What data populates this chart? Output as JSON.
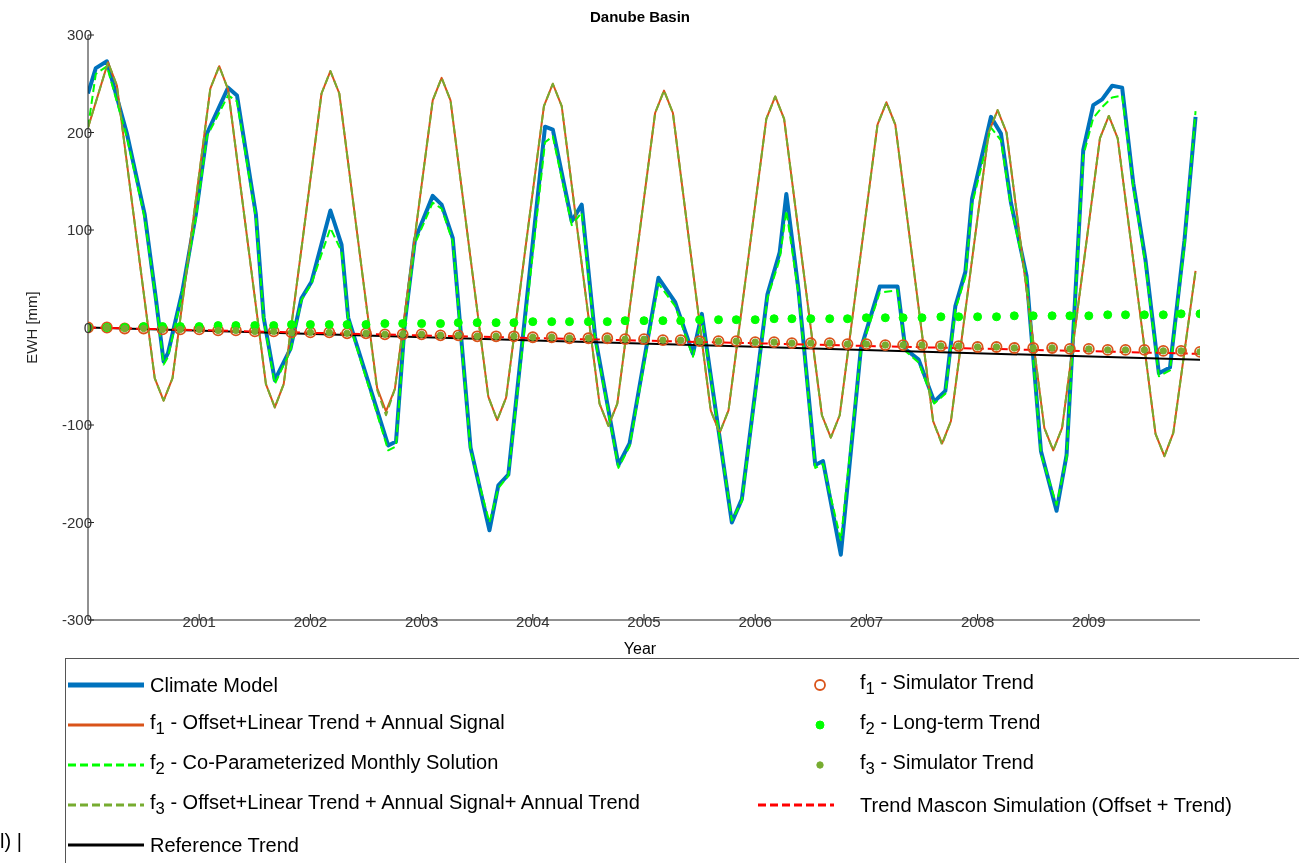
{
  "chart_data": {
    "type": "line",
    "title": "Danube Basin",
    "xlabel": "Year",
    "ylabel": "EWH [mm]",
    "xlim": [
      2000,
      2010
    ],
    "xticks": [
      2001,
      2002,
      2003,
      2004,
      2005,
      2006,
      2007,
      2008,
      2009
    ],
    "ylim": [
      -300,
      300
    ],
    "yticks": [
      -300,
      -200,
      -100,
      0,
      100,
      200,
      300
    ],
    "grid": false,
    "legend": "bottom",
    "annotations": [
      "l) |"
    ],
    "series": [
      {
        "name": "Climate Model",
        "color": "#0072bd",
        "line_style": "solid",
        "x": [
          2000.0,
          2000.07,
          2000.17,
          2000.35,
          2000.51,
          2000.61,
          2000.68,
          2000.72,
          2000.85,
          2000.97,
          2001.07,
          2001.26,
          2001.34,
          2001.51,
          2001.58,
          2001.68,
          2001.82,
          2001.92,
          2002.01,
          2002.18,
          2002.28,
          2002.34,
          2002.7,
          2002.77,
          2002.85,
          2002.94,
          2003.1,
          2003.18,
          2003.28,
          2003.44,
          2003.61,
          2003.69,
          2003.78,
          2004.11,
          2004.18,
          2004.35,
          2004.44,
          2004.56,
          2004.77,
          2004.87,
          2005.13,
          2005.28,
          2005.44,
          2005.52,
          2005.79,
          2005.88,
          2006.11,
          2006.22,
          2006.28,
          2006.39,
          2006.54,
          2006.61,
          2006.77,
          2006.95,
          2007.12,
          2007.28,
          2007.35,
          2007.47,
          2007.61,
          2007.71,
          2007.8,
          2007.89,
          2007.95,
          2008.12,
          2008.21,
          2008.3,
          2008.44,
          2008.57,
          2008.71,
          2008.8,
          2008.95,
          2009.04,
          2009.12,
          2009.21,
          2009.3,
          2009.4,
          2009.51,
          2009.63,
          2009.73,
          2009.86,
          2009.96
        ],
        "values": [
          240,
          266,
          273,
          199,
          116,
          30,
          -35,
          -26,
          38,
          116,
          199,
          246,
          238,
          116,
          10,
          -54,
          -22,
          30,
          47,
          120,
          85,
          10,
          -121,
          -117,
          6,
          90,
          135,
          126,
          92,
          -123,
          -208,
          -162,
          -151,
          206,
          203,
          109,
          126,
          -9,
          -141,
          -119,
          51,
          26,
          -27,
          14,
          -200,
          -176,
          34,
          77,
          137,
          38,
          -141,
          -137,
          -233,
          -22,
          42,
          42,
          -22,
          -33,
          -76,
          -65,
          22,
          57,
          132,
          216,
          199,
          128,
          53,
          -127,
          -188,
          -131,
          182,
          228,
          234,
          248,
          246,
          148,
          69,
          -47,
          -41,
          89,
          216
        ]
      },
      {
        "name": "f$_{1}$ - Offset+Linear Trend + Annual Signal",
        "color": "#d95319",
        "line_style": "solid",
        "x": [
          2000.0,
          2000.18,
          2000.26,
          2000.43,
          2000.6,
          2000.68,
          2000.76,
          2000.93,
          2001.1,
          2001.18,
          2001.26,
          2001.43,
          2001.6,
          2001.68,
          2001.76,
          2001.93,
          2002.1,
          2002.18,
          2002.26,
          2002.43,
          2002.6,
          2002.68,
          2002.76,
          2002.93,
          2003.1,
          2003.18,
          2003.26,
          2003.43,
          2003.6,
          2003.68,
          2003.76,
          2003.93,
          2004.1,
          2004.18,
          2004.26,
          2004.43,
          2004.6,
          2004.68,
          2004.76,
          2004.93,
          2005.1,
          2005.18,
          2005.26,
          2005.43,
          2005.6,
          2005.68,
          2005.76,
          2005.93,
          2006.1,
          2006.18,
          2006.26,
          2006.43,
          2006.6,
          2006.68,
          2006.76,
          2006.93,
          2007.1,
          2007.18,
          2007.26,
          2007.43,
          2007.6,
          2007.68,
          2007.76,
          2007.93,
          2008.1,
          2008.18,
          2008.26,
          2008.43,
          2008.6,
          2008.68,
          2008.76,
          2008.93,
          2009.1,
          2009.18,
          2009.26,
          2009.43,
          2009.6,
          2009.68,
          2009.76,
          2009.96
        ],
        "values": [
          205,
          272,
          248,
          98,
          -52,
          -75,
          -52,
          96,
          245,
          268,
          244,
          93,
          -58,
          -82,
          -58,
          90,
          240,
          263,
          240,
          88,
          -62,
          -86,
          -63,
          85,
          233,
          256,
          233,
          80,
          -71,
          -95,
          -72,
          78,
          227,
          250,
          227,
          74,
          -78,
          -101,
          -78,
          71,
          220,
          243,
          220,
          67,
          -85,
          -108,
          -85,
          64,
          214,
          237,
          214,
          62,
          -90,
          -113,
          -90,
          59,
          208,
          231,
          208,
          56,
          -96,
          -119,
          -96,
          52,
          200,
          223,
          200,
          48,
          -103,
          -126,
          -103,
          45,
          194,
          217,
          194,
          42,
          -109,
          -132,
          -108,
          58
        ]
      },
      {
        "name": "f$_{2}$ - Co-Parameterized Monthly Solution",
        "color": "#00ff00",
        "line_style": "dashed",
        "x": [
          2000.0,
          2000.07,
          2000.17,
          2000.35,
          2000.51,
          2000.61,
          2000.68,
          2000.72,
          2000.85,
          2000.97,
          2001.07,
          2001.26,
          2001.34,
          2001.51,
          2001.58,
          2001.68,
          2001.82,
          2001.92,
          2002.01,
          2002.18,
          2002.28,
          2002.34,
          2002.7,
          2002.77,
          2002.85,
          2002.94,
          2003.1,
          2003.18,
          2003.28,
          2003.44,
          2003.61,
          2003.69,
          2003.78,
          2004.11,
          2004.18,
          2004.35,
          2004.44,
          2004.56,
          2004.77,
          2004.87,
          2005.13,
          2005.28,
          2005.44,
          2005.52,
          2005.79,
          2005.88,
          2006.11,
          2006.22,
          2006.28,
          2006.39,
          2006.54,
          2006.61,
          2006.77,
          2006.95,
          2007.12,
          2007.28,
          2007.35,
          2007.47,
          2007.61,
          2007.71,
          2007.8,
          2007.89,
          2007.95,
          2008.12,
          2008.21,
          2008.3,
          2008.44,
          2008.57,
          2008.71,
          2008.8,
          2008.95,
          2009.04,
          2009.12,
          2009.21,
          2009.3,
          2009.4,
          2009.51,
          2009.63,
          2009.73,
          2009.86,
          2009.96
        ],
        "values": [
          205,
          260,
          268,
          195,
          112,
          28,
          -38,
          -30,
          36,
          112,
          196,
          238,
          232,
          112,
          8,
          -58,
          -24,
          28,
          45,
          102,
          78,
          8,
          -126,
          -122,
          4,
          86,
          128,
          122,
          88,
          -126,
          -200,
          -165,
          -152,
          190,
          196,
          105,
          118,
          -12,
          -144,
          -122,
          45,
          22,
          -30,
          10,
          -198,
          -178,
          30,
          70,
          120,
          34,
          -144,
          -140,
          -218,
          -24,
          36,
          38,
          -24,
          -36,
          -78,
          -68,
          18,
          52,
          126,
          205,
          192,
          124,
          50,
          -130,
          -182,
          -134,
          176,
          215,
          226,
          236,
          238,
          144,
          64,
          -50,
          -44,
          84,
          222
        ]
      },
      {
        "name": "f$_{3}$ - Offset+Linear Trend + Annual Signal+ Annual Trend",
        "color": "#77ac30",
        "line_style": "dashed",
        "x": [
          2000.0,
          2000.18,
          2000.26,
          2000.43,
          2000.6,
          2000.68,
          2000.76,
          2000.93,
          2001.1,
          2001.18,
          2001.26,
          2001.43,
          2001.6,
          2001.68,
          2001.76,
          2001.93,
          2002.1,
          2002.18,
          2002.26,
          2002.43,
          2002.6,
          2002.68,
          2002.76,
          2002.93,
          2003.1,
          2003.18,
          2003.26,
          2003.43,
          2003.6,
          2003.68,
          2003.76,
          2003.93,
          2004.1,
          2004.18,
          2004.26,
          2004.43,
          2004.6,
          2004.68,
          2004.76,
          2004.93,
          2005.1,
          2005.18,
          2005.26,
          2005.43,
          2005.6,
          2005.68,
          2005.76,
          2005.93,
          2006.1,
          2006.18,
          2006.26,
          2006.43,
          2006.6,
          2006.68,
          2006.76,
          2006.93,
          2007.1,
          2007.18,
          2007.26,
          2007.43,
          2007.6,
          2007.68,
          2007.76,
          2007.93,
          2008.1,
          2008.18,
          2008.26,
          2008.43,
          2008.6,
          2008.68,
          2008.76,
          2008.93,
          2009.1,
          2009.18,
          2009.26,
          2009.43,
          2009.6,
          2009.68,
          2009.76,
          2009.96
        ],
        "values": [
          205,
          272,
          248,
          98,
          -52,
          -75,
          -52,
          96,
          245,
          268,
          244,
          93,
          -58,
          -82,
          -58,
          90,
          240,
          263,
          240,
          88,
          -64,
          -90,
          -63,
          85,
          233,
          256,
          233,
          80,
          -71,
          -95,
          -72,
          78,
          227,
          250,
          227,
          74,
          -78,
          -101,
          -78,
          71,
          220,
          243,
          220,
          67,
          -85,
          -108,
          -85,
          64,
          214,
          237,
          214,
          62,
          -90,
          -113,
          -90,
          59,
          208,
          231,
          208,
          56,
          -96,
          -120,
          -96,
          52,
          200,
          223,
          200,
          48,
          -103,
          -126,
          -103,
          45,
          194,
          217,
          194,
          42,
          -109,
          -132,
          -108,
          58
        ]
      },
      {
        "name": "Reference Trend",
        "color": "#000000",
        "line_style": "solid",
        "x": [
          2000,
          2010
        ],
        "values": [
          0,
          -33
        ]
      },
      {
        "type": "scatter",
        "name": "f$_{1}$ - Simulator Trend",
        "color": "#d95319",
        "marker": "circle",
        "x": [
          2000,
          2000.17,
          2000.33,
          2000.5,
          2000.67,
          2000.83,
          2001,
          2001.17,
          2001.33,
          2001.5,
          2001.67,
          2001.83,
          2002,
          2002.17,
          2002.33,
          2002.5,
          2002.67,
          2002.83,
          2003,
          2003.17,
          2003.33,
          2003.5,
          2003.67,
          2003.83,
          2004,
          2004.17,
          2004.33,
          2004.5,
          2004.67,
          2004.83,
          2005,
          2005.17,
          2005.33,
          2005.5,
          2005.67,
          2005.83,
          2006,
          2006.17,
          2006.33,
          2006.5,
          2006.67,
          2006.83,
          2007,
          2007.17,
          2007.33,
          2007.5,
          2007.67,
          2007.83,
          2008,
          2008.17,
          2008.33,
          2008.5,
          2008.67,
          2008.83,
          2009,
          2009.17,
          2009.33,
          2009.5,
          2009.67,
          2009.83,
          2010
        ],
        "values": [
          0,
          0,
          -1,
          -1,
          -2,
          -2,
          -2,
          -3,
          -3,
          -4,
          -4,
          -5,
          -5,
          -5,
          -6,
          -6,
          -7,
          -7,
          -7,
          -8,
          -8,
          -9,
          -9,
          -9,
          -10,
          -10,
          -11,
          -11,
          -11,
          -12,
          -12,
          -13,
          -13,
          -14,
          -14,
          -14,
          -15,
          -15,
          -16,
          -16,
          -16,
          -17,
          -17,
          -18,
          -18,
          -18,
          -19,
          -19,
          -20,
          -20,
          -21,
          -21,
          -21,
          -22,
          -22,
          -23,
          -23,
          -23,
          -24,
          -24,
          -25
        ]
      },
      {
        "type": "scatter",
        "name": "f$_{2}$ - Long-term Trend",
        "color": "#00ff00",
        "marker": "circle",
        "x": [
          2000,
          2000.17,
          2000.33,
          2000.5,
          2000.67,
          2000.83,
          2001,
          2001.17,
          2001.33,
          2001.5,
          2001.67,
          2001.83,
          2002,
          2002.17,
          2002.33,
          2002.5,
          2002.67,
          2002.83,
          2003,
          2003.17,
          2003.33,
          2003.5,
          2003.67,
          2003.83,
          2004,
          2004.17,
          2004.33,
          2004.5,
          2004.67,
          2004.83,
          2005,
          2005.17,
          2005.33,
          2005.5,
          2005.67,
          2005.83,
          2006,
          2006.17,
          2006.33,
          2006.5,
          2006.67,
          2006.83,
          2007,
          2007.17,
          2007.33,
          2007.5,
          2007.67,
          2007.83,
          2008,
          2008.17,
          2008.33,
          2008.5,
          2008.67,
          2008.83,
          2009,
          2009.17,
          2009.33,
          2009.5,
          2009.67,
          2009.83,
          2010
        ],
        "values": [
          0,
          0,
          0,
          1,
          1,
          1,
          1,
          2,
          2,
          2,
          2,
          3,
          3,
          3,
          3,
          3,
          4,
          4,
          4,
          4,
          5,
          5,
          5,
          5,
          6,
          6,
          6,
          6,
          6,
          7,
          7,
          7,
          7,
          8,
          8,
          8,
          8,
          9,
          9,
          9,
          9,
          9,
          10,
          10,
          10,
          10,
          11,
          11,
          11,
          11,
          12,
          12,
          12,
          12,
          12,
          13,
          13,
          13,
          13,
          14,
          14
        ]
      },
      {
        "type": "scatter",
        "name": "f$_{3}$ - Simulator Trend",
        "color": "#77ac30",
        "marker": "circle",
        "x": [
          2000,
          2000.17,
          2000.33,
          2000.5,
          2000.67,
          2000.83,
          2001,
          2001.17,
          2001.33,
          2001.5,
          2001.67,
          2001.83,
          2002,
          2002.17,
          2002.33,
          2002.5,
          2002.67,
          2002.83,
          2003,
          2003.17,
          2003.33,
          2003.5,
          2003.67,
          2003.83,
          2004,
          2004.17,
          2004.33,
          2004.5,
          2004.67,
          2004.83,
          2005,
          2005.17,
          2005.33,
          2005.5,
          2005.67,
          2005.83,
          2006,
          2006.17,
          2006.33,
          2006.5,
          2006.67,
          2006.83,
          2007,
          2007.17,
          2007.33,
          2007.5,
          2007.67,
          2007.83,
          2008,
          2008.17,
          2008.33,
          2008.5,
          2008.67,
          2008.83,
          2009,
          2009.17,
          2009.33,
          2009.5,
          2009.67,
          2009.83,
          2010
        ],
        "values": [
          0,
          0,
          -1,
          -1,
          -2,
          -2,
          -2,
          -3,
          -3,
          -4,
          -4,
          -5,
          -5,
          -5,
          -6,
          -6,
          -7,
          -7,
          -7,
          -8,
          -8,
          -9,
          -9,
          -9,
          -10,
          -10,
          -11,
          -11,
          -11,
          -12,
          -12,
          -13,
          -13,
          -14,
          -14,
          -14,
          -15,
          -15,
          -16,
          -16,
          -16,
          -17,
          -17,
          -18,
          -18,
          -18,
          -19,
          -19,
          -20,
          -20,
          -21,
          -21,
          -21,
          -22,
          -22,
          -23,
          -23,
          -23,
          -24,
          -24,
          -25
        ]
      },
      {
        "name": "Trend Mascon Simulation (Offset + Trend)",
        "color": "#ff0000",
        "line_style": "dashed",
        "x": [
          2000,
          2010
        ],
        "values": [
          0,
          -27
        ]
      }
    ]
  }
}
